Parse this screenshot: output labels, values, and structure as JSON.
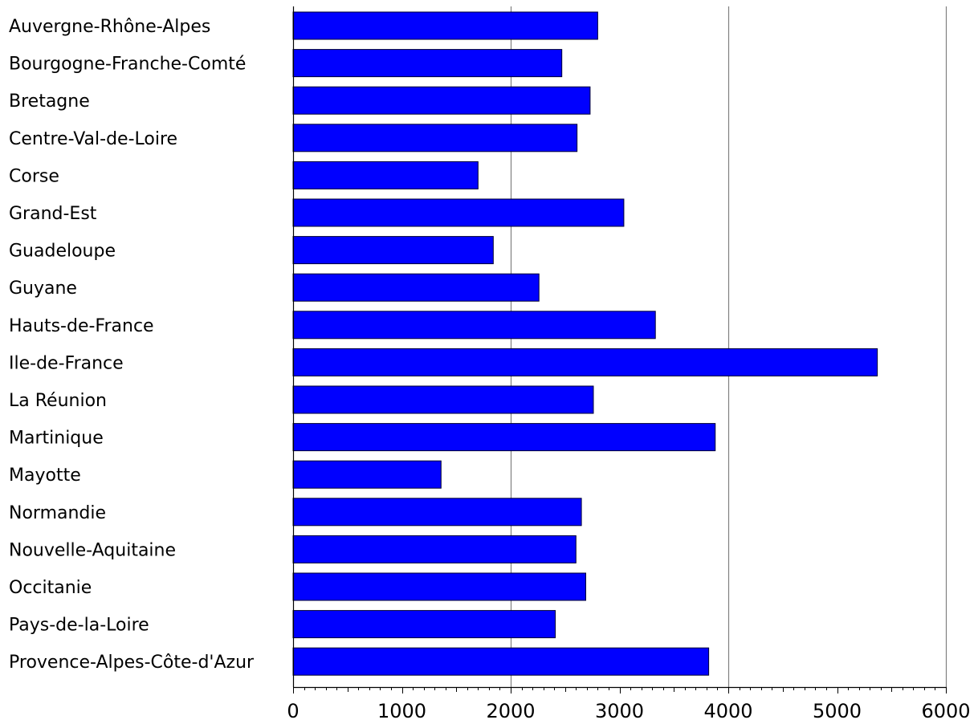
{
  "chart_data": {
    "type": "bar",
    "orientation": "horizontal",
    "title": "",
    "xlabel": "",
    "ylabel": "",
    "categories": [
      "Auvergne-Rhône-Alpes",
      "Bourgogne-Franche-Comté",
      "Bretagne",
      "Centre-Val-de-Loire",
      "Corse",
      "Grand-Est",
      "Guadeloupe",
      "Guyane",
      "Hauts-de-France",
      "Ile-de-France",
      "La Réunion",
      "Martinique",
      "Mayotte",
      "Normandie",
      "Nouvelle-Aquitaine",
      "Occitanie",
      "Pays-de-la-Loire",
      "Provence-Alpes-Côte-d'Azur"
    ],
    "values": [
      2800,
      2470,
      2730,
      2610,
      1700,
      3040,
      1840,
      2260,
      3330,
      5370,
      2760,
      3880,
      1360,
      2650,
      2600,
      2690,
      2410,
      3820
    ],
    "xlim": [
      0,
      6000
    ],
    "xticks": [
      0,
      1000,
      2000,
      3000,
      4000,
      5000,
      6000
    ],
    "xtick_labels": [
      "0",
      "1000",
      "2000",
      "3000",
      "4000",
      "5000",
      "6000"
    ],
    "gridlines_x": [
      2000,
      4000,
      6000
    ],
    "grid": "vertical major lines at 2000, 4000, 6000",
    "legend": "none",
    "colors": {
      "bar_fill": "#0000ff",
      "bar_stroke": "#000033",
      "grid": "#808080",
      "axis": "#000000"
    }
  }
}
